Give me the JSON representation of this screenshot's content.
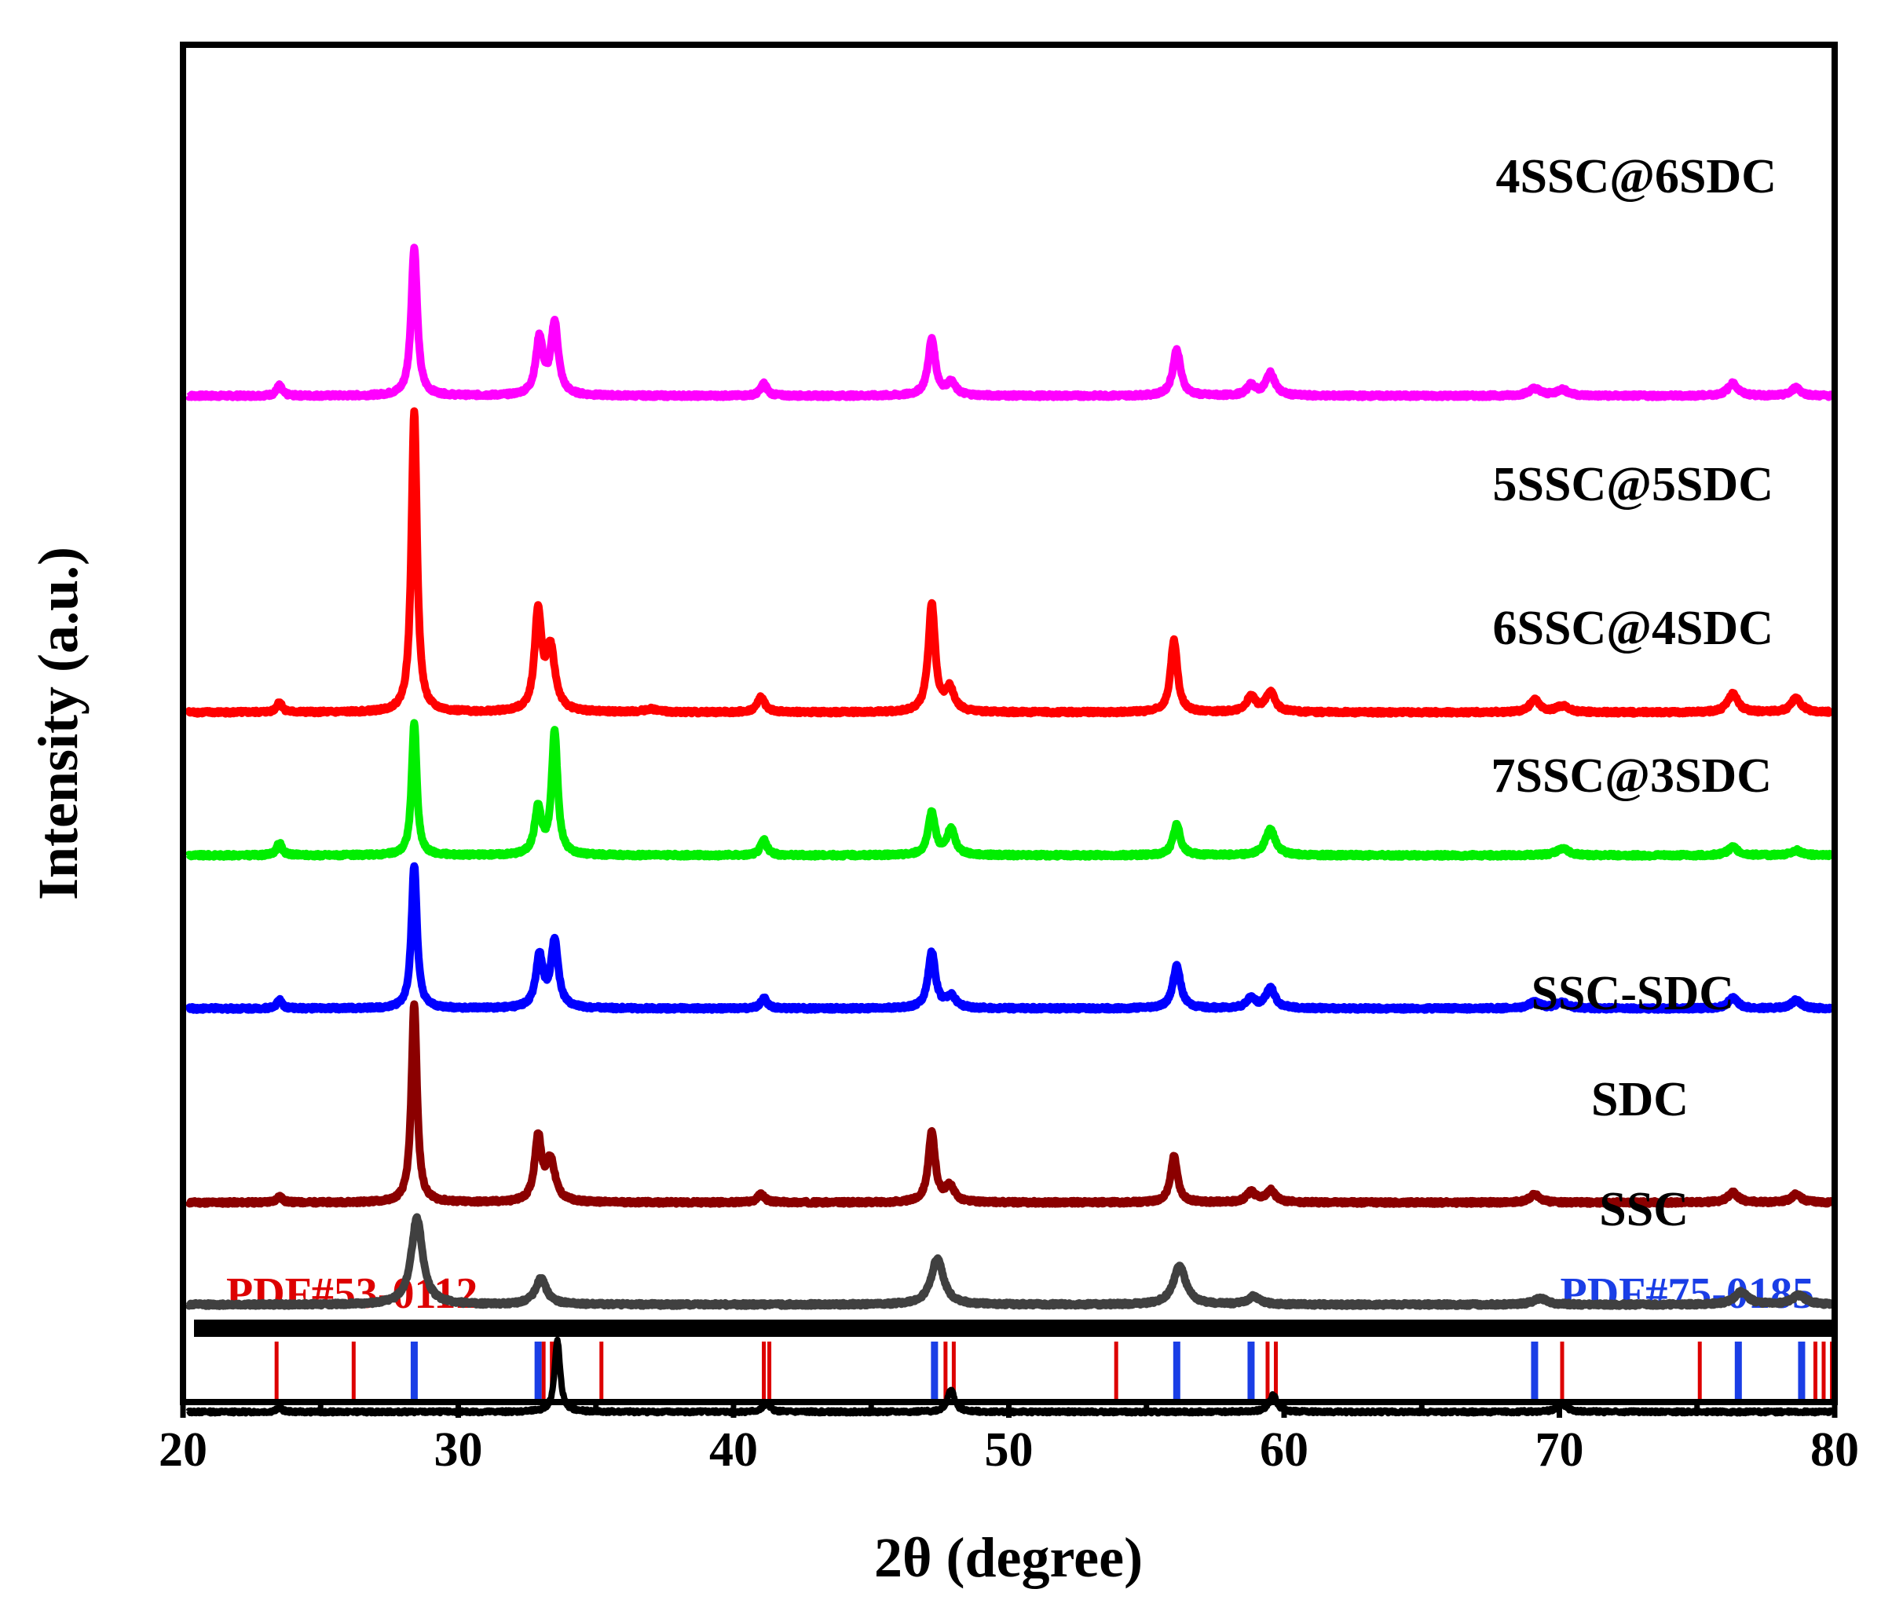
{
  "chart_data": {
    "type": "line",
    "title": "",
    "xlabel": "2θ (degree)",
    "ylabel": "Intensity (a.u.)",
    "xlim": [
      20,
      80
    ],
    "x_ticks": [
      20,
      30,
      40,
      50,
      60,
      70,
      80
    ],
    "x_tick_labels": [
      "20",
      "30",
      "40",
      "50",
      "60",
      "70",
      "80"
    ],
    "y_ticks_shown": false,
    "grid": false,
    "series": [
      {
        "name": "4SSC@6SDC",
        "color": "#ff00ff",
        "baseline": 8.2,
        "linewidth": 10,
        "peaks": [
          [
            23.5,
            0.1,
            0.12
          ],
          [
            28.4,
            1.45,
            0.13
          ],
          [
            32.95,
            0.55,
            0.16
          ],
          [
            33.5,
            0.7,
            0.16
          ],
          [
            41.1,
            0.12,
            0.14
          ],
          [
            47.2,
            0.55,
            0.16
          ],
          [
            47.9,
            0.12,
            0.2
          ],
          [
            56.1,
            0.45,
            0.17
          ],
          [
            58.8,
            0.1,
            0.18
          ],
          [
            59.5,
            0.22,
            0.2
          ],
          [
            69.1,
            0.07,
            0.25
          ],
          [
            70.1,
            0.06,
            0.25
          ],
          [
            76.3,
            0.12,
            0.22
          ],
          [
            78.6,
            0.08,
            0.2
          ]
        ]
      },
      {
        "name": "5SSC@5SDC",
        "color": "#ff0000",
        "baseline": 5.1,
        "linewidth": 10,
        "peaks": [
          [
            23.5,
            0.1,
            0.12
          ],
          [
            28.4,
            2.95,
            0.12
          ],
          [
            32.9,
            0.95,
            0.15
          ],
          [
            33.35,
            0.6,
            0.2
          ],
          [
            37.0,
            0.03,
            0.3
          ],
          [
            41.0,
            0.15,
            0.16
          ],
          [
            47.2,
            1.05,
            0.15
          ],
          [
            47.85,
            0.22,
            0.2
          ],
          [
            56.0,
            0.7,
            0.15
          ],
          [
            58.8,
            0.15,
            0.2
          ],
          [
            59.5,
            0.2,
            0.2
          ],
          [
            69.1,
            0.12,
            0.22
          ],
          [
            70.1,
            0.06,
            0.25
          ],
          [
            76.3,
            0.18,
            0.22
          ],
          [
            78.6,
            0.14,
            0.22
          ]
        ]
      },
      {
        "name": "6SSC@4SDC",
        "color": "#00ee00",
        "baseline": 3.7,
        "linewidth": 10,
        "peaks": [
          [
            23.5,
            0.12,
            0.12
          ],
          [
            28.4,
            1.3,
            0.11
          ],
          [
            32.9,
            0.45,
            0.15
          ],
          [
            33.5,
            1.2,
            0.13
          ],
          [
            41.1,
            0.15,
            0.14
          ],
          [
            47.2,
            0.42,
            0.15
          ],
          [
            47.9,
            0.25,
            0.18
          ],
          [
            56.1,
            0.3,
            0.16
          ],
          [
            59.5,
            0.25,
            0.22
          ],
          [
            70.1,
            0.07,
            0.25
          ],
          [
            76.3,
            0.08,
            0.22
          ],
          [
            78.6,
            0.05,
            0.2
          ]
        ]
      },
      {
        "name": "7SSC@3SDC",
        "color": "#0000ff",
        "baseline": 2.2,
        "linewidth": 10,
        "peaks": [
          [
            23.5,
            0.08,
            0.12
          ],
          [
            28.4,
            1.4,
            0.12
          ],
          [
            32.95,
            0.5,
            0.16
          ],
          [
            33.5,
            0.65,
            0.16
          ],
          [
            41.1,
            0.1,
            0.14
          ],
          [
            47.2,
            0.55,
            0.16
          ],
          [
            47.9,
            0.12,
            0.2
          ],
          [
            56.1,
            0.42,
            0.17
          ],
          [
            58.8,
            0.1,
            0.18
          ],
          [
            59.5,
            0.2,
            0.2
          ],
          [
            69.1,
            0.06,
            0.25
          ],
          [
            70.1,
            0.06,
            0.25
          ],
          [
            76.3,
            0.1,
            0.22
          ],
          [
            78.6,
            0.08,
            0.2
          ]
        ]
      },
      {
        "name": "SSC-SDC",
        "color": "#8b0000",
        "baseline": 0.3,
        "linewidth": 10,
        "peaks": [
          [
            23.5,
            0.06,
            0.12
          ],
          [
            28.4,
            1.95,
            0.12
          ],
          [
            32.9,
            0.62,
            0.15
          ],
          [
            33.35,
            0.4,
            0.2
          ],
          [
            41.0,
            0.08,
            0.16
          ],
          [
            47.2,
            0.68,
            0.15
          ],
          [
            47.85,
            0.15,
            0.2
          ],
          [
            56.0,
            0.45,
            0.15
          ],
          [
            58.8,
            0.1,
            0.2
          ],
          [
            59.5,
            0.12,
            0.2
          ],
          [
            69.1,
            0.08,
            0.22
          ],
          [
            76.3,
            0.1,
            0.22
          ],
          [
            78.6,
            0.08,
            0.22
          ]
        ]
      },
      {
        "name": "SDC",
        "color": "#404040",
        "baseline": -0.7,
        "linewidth": 10,
        "peaks": [
          [
            28.5,
            0.85,
            0.25
          ],
          [
            33.0,
            0.25,
            0.25
          ],
          [
            47.4,
            0.45,
            0.27
          ],
          [
            56.2,
            0.38,
            0.27
          ],
          [
            58.9,
            0.08,
            0.25
          ],
          [
            69.3,
            0.06,
            0.3
          ],
          [
            76.6,
            0.12,
            0.3
          ],
          [
            78.7,
            0.09,
            0.3
          ]
        ]
      },
      {
        "name": "SSC",
        "color": "#000000",
        "baseline": -1.75,
        "linewidth": 8,
        "peaks": [
          [
            23.5,
            0.04,
            0.12
          ],
          [
            33.6,
            0.7,
            0.12
          ],
          [
            41.2,
            0.08,
            0.15
          ],
          [
            47.9,
            0.22,
            0.15
          ],
          [
            59.6,
            0.16,
            0.17
          ],
          [
            70.1,
            0.08,
            0.2
          ]
        ]
      }
    ],
    "reference_patterns": [
      {
        "label": "PDF#53-0112",
        "color": "#dd0000",
        "positions": [
          23.4,
          26.2,
          33.1,
          33.4,
          35.2,
          41.1,
          41.3,
          47.7,
          48.0,
          53.9,
          59.4,
          59.7,
          70.1,
          75.1,
          79.3,
          79.6,
          79.9
        ]
      },
      {
        "label": "PDF#75-0185",
        "color": "#1a3ee6",
        "positions": [
          28.4,
          32.9,
          47.3,
          56.1,
          58.8,
          69.1,
          76.5,
          78.8
        ]
      }
    ]
  }
}
